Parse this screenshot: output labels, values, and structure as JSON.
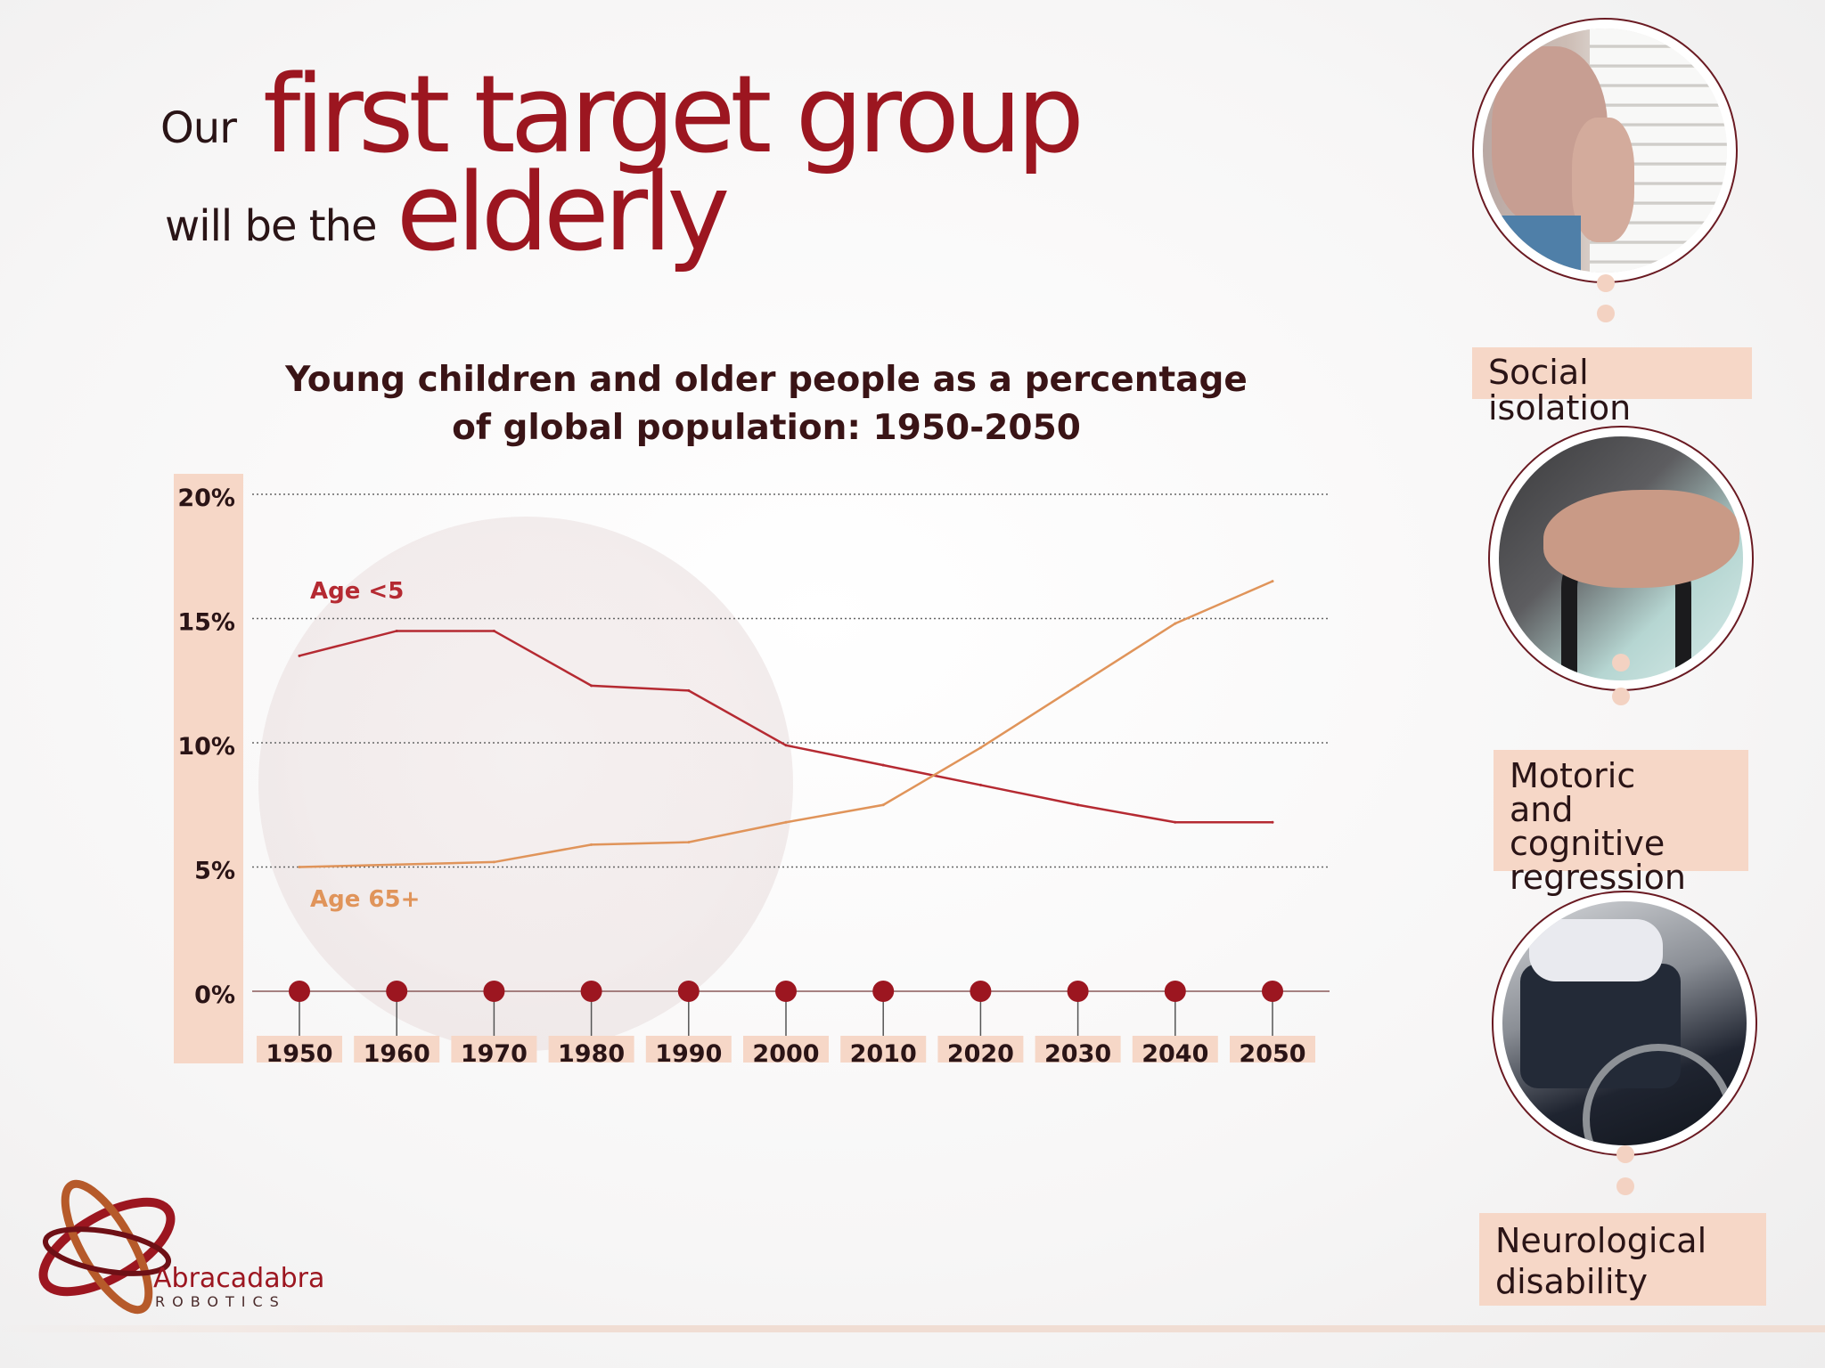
{
  "headline": {
    "line1_small": "Our",
    "line1_big": "first target group",
    "line2_small": "will be the",
    "line2_big": "elderly"
  },
  "chart_data": {
    "type": "line",
    "title_line1": "Young children and older people as a percentage",
    "title_line2": "of global population: 1950-2050",
    "x": [
      1950,
      1960,
      1970,
      1980,
      1990,
      2000,
      2010,
      2020,
      2030,
      2040,
      2050
    ],
    "x_tick_labels": [
      "1950",
      "1960",
      "1970",
      "1980",
      "1990",
      "2000",
      "2010",
      "2020",
      "2030",
      "2040",
      "2050"
    ],
    "y_tick_labels": [
      "0%",
      "5%",
      "10%",
      "15%",
      "20%"
    ],
    "y_ticks": [
      0,
      5,
      10,
      15,
      20
    ],
    "ylim": [
      0,
      20
    ],
    "grid": true,
    "series": [
      {
        "name": "Age <5",
        "color": "#b52a32",
        "values": [
          13.5,
          14.5,
          14.5,
          12.3,
          12.1,
          9.9,
          9.1,
          8.3,
          7.5,
          6.8,
          6.8
        ]
      },
      {
        "name": "Age 65+",
        "color": "#e0945a",
        "values": [
          5.0,
          5.1,
          5.2,
          5.9,
          6.0,
          6.8,
          7.5,
          9.8,
          12.3,
          14.8,
          16.5
        ]
      }
    ]
  },
  "sidebar": {
    "items": [
      {
        "label": "Social isolation",
        "photo": "elderly-woman-at-window"
      },
      {
        "label": "Motoric and cognitive regression",
        "label_lines": [
          "Motoric",
          "and cognitive",
          "regression"
        ],
        "photo": "hands-on-cane"
      },
      {
        "label": "Neurological disability",
        "label_lines": [
          "Neurological",
          "disability"
        ],
        "photo": "wheelchair"
      }
    ]
  },
  "logo": {
    "name": "Abracadabra",
    "tagline": "ROBOTICS"
  },
  "colors": {
    "brand_red": "#9c1620",
    "accent_peach": "#f6d7c7",
    "line_young": "#b52a32",
    "line_old": "#e0945a"
  }
}
